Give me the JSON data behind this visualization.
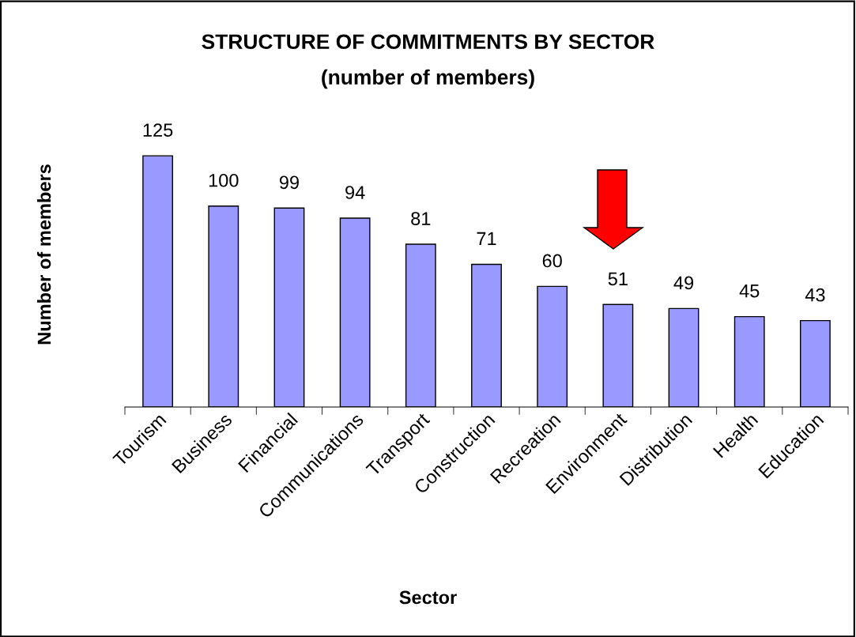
{
  "chart_data": {
    "type": "bar",
    "title": "STRUCTURE OF COMMITMENTS BY SECTOR",
    "subtitle": "(number of members)",
    "xlabel": "Sector",
    "ylabel": "Number of members",
    "categories": [
      "Tourism",
      "Business",
      "Financial",
      "Communications",
      "Transport",
      "Construction",
      "Recreation",
      "Environment",
      "Distribution",
      "Health",
      "Education"
    ],
    "values": [
      125,
      100,
      99,
      94,
      81,
      71,
      60,
      51,
      49,
      45,
      43
    ],
    "color": "#9999ff",
    "tick_labels": "x",
    "data_labels": true,
    "grid": false,
    "legend": false
  }
}
